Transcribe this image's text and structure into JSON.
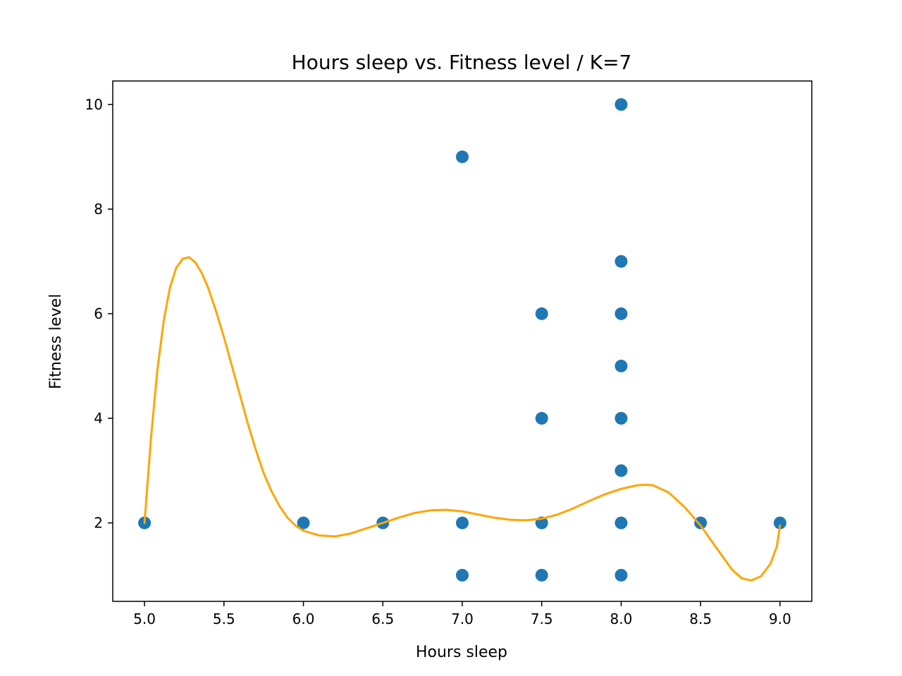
{
  "chart_data": {
    "type": "scatter",
    "title": "Hours sleep vs. Fitness level / K=7",
    "xlabel": "Hours sleep",
    "ylabel": "Fitness level",
    "xlim": [
      4.8,
      9.2
    ],
    "ylim": [
      0.5,
      10.45
    ],
    "xticks": [
      5.0,
      5.5,
      6.0,
      6.5,
      7.0,
      7.5,
      8.0,
      8.5,
      9.0
    ],
    "yticks": [
      2,
      4,
      6,
      8,
      10
    ],
    "xtick_labels": [
      "5.0",
      "5.5",
      "6.0",
      "6.5",
      "7.0",
      "7.5",
      "8.0",
      "8.5",
      "9.0"
    ],
    "ytick_labels": [
      "2",
      "4",
      "6",
      "8",
      "10"
    ],
    "grid": false,
    "series": [
      {
        "type": "scatter",
        "color": "#1f77b4",
        "points": [
          {
            "x": 5.0,
            "y": 2
          },
          {
            "x": 6.0,
            "y": 2
          },
          {
            "x": 6.5,
            "y": 2
          },
          {
            "x": 7.0,
            "y": 9
          },
          {
            "x": 7.0,
            "y": 2
          },
          {
            "x": 7.0,
            "y": 1
          },
          {
            "x": 7.5,
            "y": 6
          },
          {
            "x": 7.5,
            "y": 4
          },
          {
            "x": 7.5,
            "y": 2
          },
          {
            "x": 7.5,
            "y": 1
          },
          {
            "x": 8.0,
            "y": 10
          },
          {
            "x": 8.0,
            "y": 7
          },
          {
            "x": 8.0,
            "y": 6
          },
          {
            "x": 8.0,
            "y": 5
          },
          {
            "x": 8.0,
            "y": 4
          },
          {
            "x": 8.0,
            "y": 3
          },
          {
            "x": 8.0,
            "y": 2
          },
          {
            "x": 8.0,
            "y": 1
          },
          {
            "x": 8.5,
            "y": 2
          },
          {
            "x": 9.0,
            "y": 2
          }
        ]
      },
      {
        "type": "line",
        "color": "#ffa500",
        "points": [
          {
            "x": 5.0,
            "y": 2.0
          },
          {
            "x": 5.04,
            "y": 3.6
          },
          {
            "x": 5.08,
            "y": 4.9
          },
          {
            "x": 5.12,
            "y": 5.85
          },
          {
            "x": 5.16,
            "y": 6.5
          },
          {
            "x": 5.2,
            "y": 6.88
          },
          {
            "x": 5.24,
            "y": 7.05
          },
          {
            "x": 5.28,
            "y": 7.08
          },
          {
            "x": 5.32,
            "y": 6.98
          },
          {
            "x": 5.36,
            "y": 6.78
          },
          {
            "x": 5.4,
            "y": 6.5
          },
          {
            "x": 5.45,
            "y": 6.05
          },
          {
            "x": 5.5,
            "y": 5.55
          },
          {
            "x": 5.55,
            "y": 5.0
          },
          {
            "x": 5.6,
            "y": 4.45
          },
          {
            "x": 5.65,
            "y": 3.9
          },
          {
            "x": 5.7,
            "y": 3.4
          },
          {
            "x": 5.75,
            "y": 2.95
          },
          {
            "x": 5.8,
            "y": 2.6
          },
          {
            "x": 5.85,
            "y": 2.32
          },
          {
            "x": 5.9,
            "y": 2.1
          },
          {
            "x": 5.95,
            "y": 1.95
          },
          {
            "x": 6.0,
            "y": 1.85
          },
          {
            "x": 6.1,
            "y": 1.76
          },
          {
            "x": 6.2,
            "y": 1.74
          },
          {
            "x": 6.3,
            "y": 1.8
          },
          {
            "x": 6.4,
            "y": 1.9
          },
          {
            "x": 6.5,
            "y": 2.0
          },
          {
            "x": 6.6,
            "y": 2.1
          },
          {
            "x": 6.7,
            "y": 2.19
          },
          {
            "x": 6.8,
            "y": 2.24
          },
          {
            "x": 6.9,
            "y": 2.25
          },
          {
            "x": 7.0,
            "y": 2.22
          },
          {
            "x": 7.1,
            "y": 2.16
          },
          {
            "x": 7.2,
            "y": 2.1
          },
          {
            "x": 7.3,
            "y": 2.06
          },
          {
            "x": 7.4,
            "y": 2.05
          },
          {
            "x": 7.5,
            "y": 2.08
          },
          {
            "x": 7.6,
            "y": 2.16
          },
          {
            "x": 7.7,
            "y": 2.28
          },
          {
            "x": 7.8,
            "y": 2.42
          },
          {
            "x": 7.9,
            "y": 2.55
          },
          {
            "x": 8.0,
            "y": 2.65
          },
          {
            "x": 8.1,
            "y": 2.72
          },
          {
            "x": 8.15,
            "y": 2.73
          },
          {
            "x": 8.2,
            "y": 2.72
          },
          {
            "x": 8.3,
            "y": 2.58
          },
          {
            "x": 8.4,
            "y": 2.3
          },
          {
            "x": 8.5,
            "y": 1.95
          },
          {
            "x": 8.6,
            "y": 1.52
          },
          {
            "x": 8.7,
            "y": 1.1
          },
          {
            "x": 8.76,
            "y": 0.94
          },
          {
            "x": 8.82,
            "y": 0.9
          },
          {
            "x": 8.88,
            "y": 0.98
          },
          {
            "x": 8.94,
            "y": 1.22
          },
          {
            "x": 8.98,
            "y": 1.55
          },
          {
            "x": 9.0,
            "y": 1.95
          }
        ]
      }
    ]
  }
}
